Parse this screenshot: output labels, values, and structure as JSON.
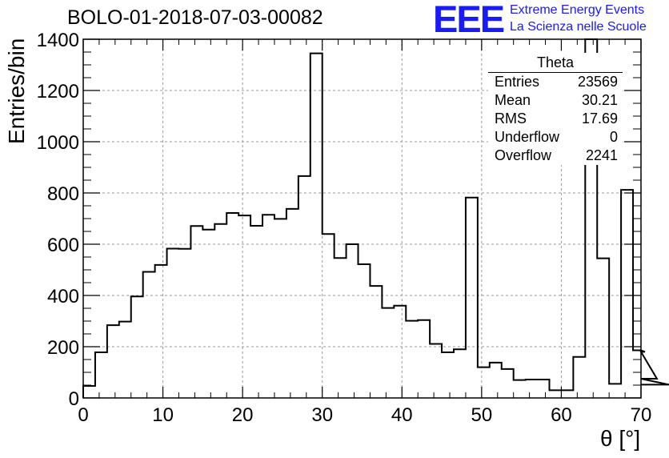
{
  "title": "BOLO-01-2018-07-03-00082",
  "logo": {
    "mark": "EEE",
    "line1": "Extreme Energy Events",
    "line2": "La Scienza nelle Scuole"
  },
  "stats": {
    "name": "Theta",
    "rows": [
      {
        "label": "Entries",
        "value": "23569"
      },
      {
        "label": "Mean",
        "value": "30.21"
      },
      {
        "label": "RMS",
        "value": "17.69"
      },
      {
        "label": "Underflow",
        "value": "0"
      },
      {
        "label": "Overflow",
        "value": "2241"
      }
    ]
  },
  "chart_data": {
    "type": "histogram",
    "title": "BOLO-01-2018-07-03-00082",
    "xlabel": "θ [°]",
    "ylabel": "Entries/bin",
    "xlim": [
      0,
      70
    ],
    "ylim": [
      0,
      1400
    ],
    "bin_width": 1.5,
    "bin_start": 0,
    "values": [
      47,
      178,
      284,
      298,
      396,
      492,
      519,
      583,
      582,
      671,
      657,
      679,
      722,
      712,
      672,
      715,
      699,
      738,
      866,
      1345,
      640,
      546,
      600,
      522,
      437,
      351,
      360,
      301,
      304,
      211,
      178,
      190,
      782,
      120,
      138,
      113,
      70,
      72,
      72,
      30,
      30,
      160,
      1435,
      545,
      55,
      812,
      186,
      180,
      75,
      52
    ],
    "xticks": [
      0,
      10,
      20,
      30,
      40,
      50,
      60,
      70
    ],
    "yticks": [
      0,
      200,
      400,
      600,
      800,
      1000,
      1200,
      1400
    ],
    "grid": true,
    "line_color": "#000000"
  }
}
